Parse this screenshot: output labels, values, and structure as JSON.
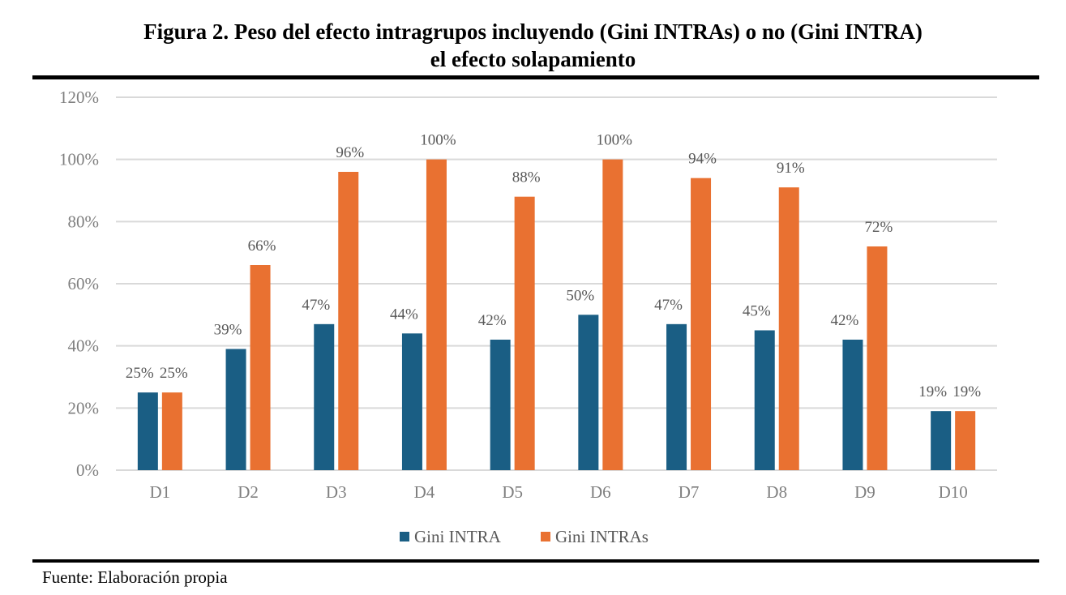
{
  "figure": {
    "title_line1": "Figura 2. Peso del efecto intragrupos incluyendo (Gini INTRAs) o no (Gini INTRA)",
    "title_line2": "el efecto solapamiento",
    "source": "Fuente: Elaboración propia"
  },
  "chart_data": {
    "type": "bar",
    "title": "Figura 2. Peso del efecto intragrupos incluyendo (Gini INTRAs) o no (Gini INTRA) el efecto solapamiento",
    "xlabel": "",
    "ylabel": "",
    "categories": [
      "D1",
      "D2",
      "D3",
      "D4",
      "D5",
      "D6",
      "D7",
      "D8",
      "D9",
      "D10"
    ],
    "series": [
      {
        "name": "Gini INTRA",
        "color": "#1a5e84",
        "values": [
          25,
          39,
          47,
          44,
          42,
          50,
          47,
          45,
          42,
          19
        ],
        "labels": [
          "25%",
          "39%",
          "47%",
          "44%",
          "42%",
          "50%",
          "47%",
          "45%",
          "42%",
          "19%"
        ]
      },
      {
        "name": "Gini INTRAs",
        "color": "#e97131",
        "values": [
          25,
          66,
          96,
          100,
          88,
          100,
          94,
          91,
          72,
          19
        ],
        "labels": [
          "25%",
          "66%",
          "96%",
          "100%",
          "88%",
          "100%",
          "94%",
          "91%",
          "72%",
          "19%"
        ]
      }
    ],
    "ylim": [
      0,
      120
    ],
    "yticks": [
      0,
      20,
      40,
      60,
      80,
      100,
      120
    ],
    "ytick_labels": [
      "0%",
      "20%",
      "40%",
      "60%",
      "80%",
      "100%",
      "120%"
    ],
    "grid": true,
    "gridline_color": "#d9d9d9",
    "legend_position": "bottom-center",
    "legend": [
      "Gini INTRA",
      "Gini INTRAs"
    ]
  }
}
